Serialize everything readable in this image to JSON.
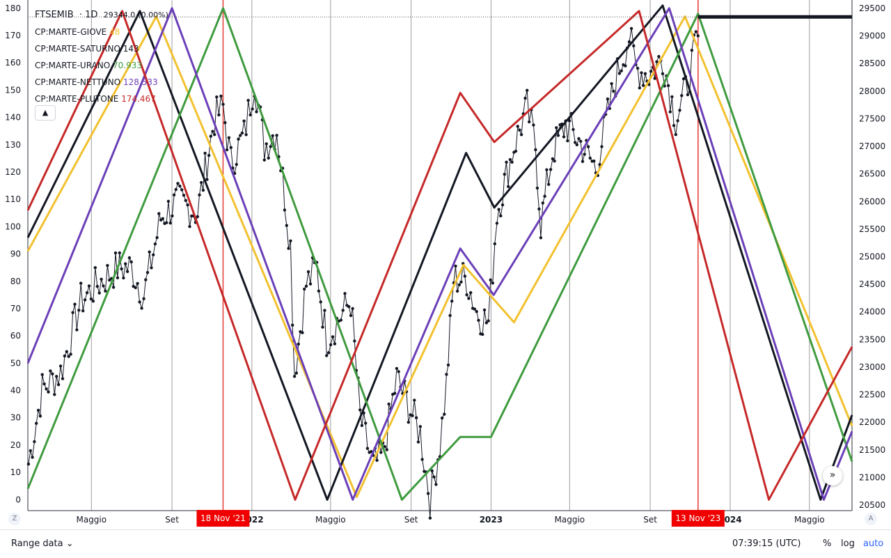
{
  "header": {
    "symbol": "FTSEMIB",
    "interval": "1D",
    "price": "29344.0",
    "change": "(0.00%)"
  },
  "legend": [
    {
      "name": "CP:MARTE-GIOVE",
      "value": "48",
      "color": "#f2c12e"
    },
    {
      "name": "CP:MARTE-SATURNO",
      "value": "143",
      "color": "#131722"
    },
    {
      "name": "CP:MARTE-URANO",
      "value": "70.933",
      "color": "#3f9b3f"
    },
    {
      "name": "CP:MARTE-NETTUNO",
      "value": "128.533",
      "color": "#6b3fb8"
    },
    {
      "name": "CP:MARTE-PLUTONE",
      "value": "174.467",
      "color": "#c62828"
    }
  ],
  "collapse_icon": "chevron-up-icon",
  "bottom": {
    "range": "Range data",
    "time": "07:39:15 (UTC)",
    "pct": "%",
    "log": "log",
    "auto": "auto",
    "left_corner": "Z",
    "right_corner": "A"
  },
  "scroll_icon": "double-chevron-right-icon",
  "chart_data": {
    "type": "line",
    "x_ticks": [
      {
        "label": "Maggio",
        "date": "2021-05-01",
        "bold": false
      },
      {
        "label": "Set",
        "date": "2021-09-01",
        "bold": false
      },
      {
        "label": "2022",
        "date": "2022-01-01",
        "bold": true
      },
      {
        "label": "Maggio",
        "date": "2022-05-01",
        "bold": false
      },
      {
        "label": "Set",
        "date": "2022-09-01",
        "bold": false
      },
      {
        "label": "2023",
        "date": "2023-01-01",
        "bold": true
      },
      {
        "label": "Maggio",
        "date": "2023-05-01",
        "bold": false
      },
      {
        "label": "Set",
        "date": "2023-09-01",
        "bold": false
      },
      {
        "label": "2024",
        "date": "2024-01-01",
        "bold": true
      },
      {
        "label": "Maggio",
        "date": "2024-05-01",
        "bold": false
      }
    ],
    "x_range": [
      "2021-01-24",
      "2024-07-05"
    ],
    "left_axis": {
      "ticks": [
        0,
        10,
        20,
        30,
        40,
        50,
        60,
        70,
        80,
        90,
        100,
        110,
        120,
        130,
        140,
        150,
        160,
        170,
        180
      ],
      "range": [
        -4,
        182
      ]
    },
    "right_axis": {
      "ticks": [
        20500,
        21000,
        21500,
        22000,
        22500,
        23000,
        23500,
        24000,
        24500,
        25000,
        25500,
        26000,
        26500,
        27000,
        27500,
        28000,
        28500,
        29000,
        29500
      ],
      "range": [
        20400,
        29600
      ]
    },
    "vlines": [
      {
        "label": "18 Nov '21",
        "date": "2021-11-18",
        "color": "#e53935"
      },
      {
        "label": "13 Nov '23",
        "date": "2023-11-13",
        "color": "#e53935"
      }
    ],
    "price_line": {
      "value": 29344,
      "start": "2023-11-13",
      "end": "2024-07-05"
    },
    "series": [
      {
        "color": "#f2c12e",
        "points": [
          [
            "2021-01-24",
            91
          ],
          [
            "2021-08-08",
            177
          ],
          [
            "2022-06-10",
            1
          ],
          [
            "2022-11-20",
            86
          ],
          [
            "2023-02-05",
            65
          ],
          [
            "2023-10-24",
            177
          ],
          [
            "2024-07-05",
            27
          ]
        ]
      },
      {
        "color": "#131722",
        "points": [
          [
            "2021-01-24",
            96
          ],
          [
            "2021-07-14",
            179
          ],
          [
            "2022-04-26",
            0
          ],
          [
            "2022-11-24",
            127
          ],
          [
            "2023-01-06",
            107
          ],
          [
            "2023-09-20",
            181
          ],
          [
            "2024-05-18",
            0
          ],
          [
            "2024-07-05",
            31
          ]
        ]
      },
      {
        "color": "#3f9b3f",
        "points": [
          [
            "2021-01-24",
            4
          ],
          [
            "2021-11-18",
            180
          ],
          [
            "2022-08-18",
            0
          ],
          [
            "2022-11-15",
            23
          ],
          [
            "2023-01-01",
            23
          ],
          [
            "2023-11-13",
            178
          ],
          [
            "2024-07-05",
            14
          ]
        ]
      },
      {
        "color": "#6b3fb8",
        "points": [
          [
            "2021-01-24",
            50
          ],
          [
            "2021-09-01",
            180
          ],
          [
            "2022-06-04",
            0
          ],
          [
            "2022-11-15",
            92
          ],
          [
            "2023-01-05",
            75
          ],
          [
            "2023-09-30",
            180
          ],
          [
            "2024-05-23",
            0
          ],
          [
            "2024-07-05",
            25
          ]
        ]
      },
      {
        "color": "#c62828",
        "points": [
          [
            "2021-01-24",
            106
          ],
          [
            "2021-06-17",
            179
          ],
          [
            "2022-03-08",
            0
          ],
          [
            "2022-11-15",
            149
          ],
          [
            "2023-01-06",
            131
          ],
          [
            "2023-08-15",
            179
          ],
          [
            "2024-02-29",
            0
          ],
          [
            "2024-07-05",
            56
          ]
        ]
      }
    ],
    "ftsemib": [
      [
        "2021-01-25",
        21250
      ],
      [
        "2021-02-15",
        22600
      ],
      [
        "2021-03-15",
        22900
      ],
      [
        "2021-04-15",
        24200
      ],
      [
        "2021-05-10",
        24500
      ],
      [
        "2021-06-10",
        24800
      ],
      [
        "2021-07-01",
        24800
      ],
      [
        "2021-07-20",
        24300
      ],
      [
        "2021-08-15",
        25700
      ],
      [
        "2021-09-10",
        26000
      ],
      [
        "2021-10-10",
        25800
      ],
      [
        "2021-11-05",
        27500
      ],
      [
        "2021-11-18",
        27700
      ],
      [
        "2021-11-30",
        26700
      ],
      [
        "2021-12-20",
        27200
      ],
      [
        "2022-01-05",
        28200
      ],
      [
        "2022-01-20",
        27000
      ],
      [
        "2022-02-08",
        27300
      ],
      [
        "2022-03-01",
        25200
      ],
      [
        "2022-03-07",
        22900
      ],
      [
        "2022-03-25",
        24500
      ],
      [
        "2022-04-10",
        24800
      ],
      [
        "2022-04-25",
        23500
      ],
      [
        "2022-05-20",
        24000
      ],
      [
        "2022-06-01",
        24200
      ],
      [
        "2022-06-15",
        22100
      ],
      [
        "2022-07-05",
        21200
      ],
      [
        "2022-07-20",
        21400
      ],
      [
        "2022-08-10",
        22800
      ],
      [
        "2022-08-25",
        22400
      ],
      [
        "2022-09-15",
        21800
      ],
      [
        "2022-09-30",
        20600
      ],
      [
        "2022-10-15",
        21600
      ],
      [
        "2022-10-25",
        22700
      ],
      [
        "2022-11-05",
        24600
      ],
      [
        "2022-11-25",
        24600
      ],
      [
        "2022-12-10",
        24000
      ],
      [
        "2022-12-28",
        23800
      ],
      [
        "2023-01-10",
        25800
      ],
      [
        "2023-02-05",
        27000
      ],
      [
        "2023-02-25",
        27700
      ],
      [
        "2023-03-10",
        27000
      ],
      [
        "2023-03-18",
        25600
      ],
      [
        "2023-04-05",
        26900
      ],
      [
        "2023-04-25",
        27400
      ],
      [
        "2023-05-15",
        27100
      ],
      [
        "2023-06-10",
        26600
      ],
      [
        "2023-07-10",
        28200
      ],
      [
        "2023-07-31",
        29000
      ],
      [
        "2023-08-10",
        28400
      ],
      [
        "2023-08-30",
        28300
      ],
      [
        "2023-09-20",
        28600
      ],
      [
        "2023-10-10",
        27500
      ],
      [
        "2023-10-25",
        28000
      ],
      [
        "2023-11-13",
        29000
      ]
    ]
  }
}
